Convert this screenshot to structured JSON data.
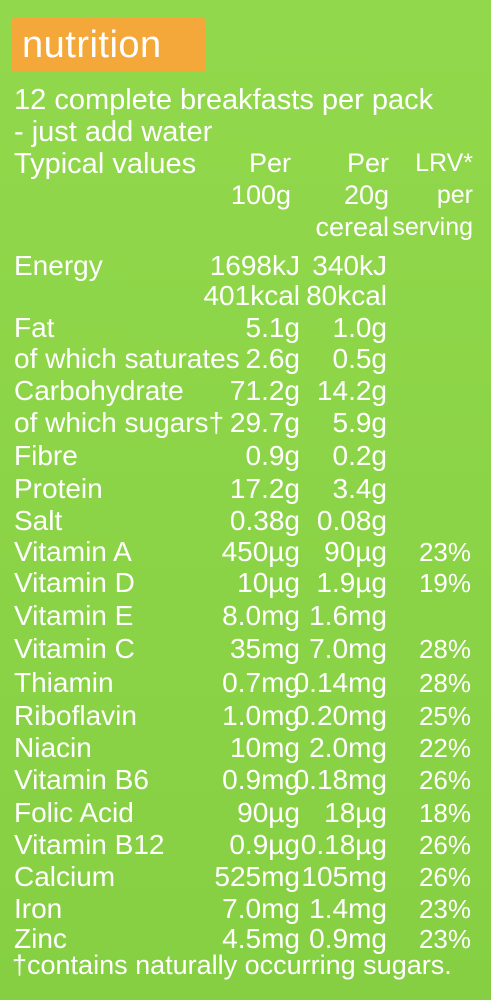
{
  "badge": "nutrition",
  "intro": [
    "12 complete breakfasts per pack",
    "- just add water"
  ],
  "header": {
    "label": "Typical values",
    "col1": [
      "Per",
      "100g"
    ],
    "col2": [
      "Per",
      "20g",
      "cereal"
    ],
    "col3": [
      "LRV*",
      "per",
      "serving"
    ]
  },
  "rows": [
    {
      "label": "Energy",
      "v1": "1698kJ",
      "v2": "340kJ",
      "v3": ""
    },
    {
      "label": "",
      "v1": "401kcal",
      "v2": "80kcal",
      "v3": ""
    },
    {
      "label": "Fat",
      "v1": "5.1g",
      "v2": "1.0g",
      "v3": ""
    },
    {
      "label": "of which saturates",
      "v1": "2.6g",
      "v2": "0.5g",
      "v3": ""
    },
    {
      "label": "Carbohydrate",
      "v1": "71.2g",
      "v2": "14.2g",
      "v3": ""
    },
    {
      "label": "of which sugars†",
      "v1": "29.7g",
      "v2": "5.9g",
      "v3": ""
    },
    {
      "label": "Fibre",
      "v1": "0.9g",
      "v2": "0.2g",
      "v3": ""
    },
    {
      "label": "Protein",
      "v1": "17.2g",
      "v2": "3.4g",
      "v3": ""
    },
    {
      "label": "Salt",
      "v1": "0.38g",
      "v2": "0.08g",
      "v3": ""
    },
    {
      "label": "Vitamin A",
      "v1": "450µg",
      "v2": "90µg",
      "v3": "23%"
    },
    {
      "label": "Vitamin D",
      "v1": "10µg",
      "v2": "1.9µg",
      "v3": "19%"
    },
    {
      "label": "Vitamin E",
      "v1": "8.0mg",
      "v2": "1.6mg",
      "v3": ""
    },
    {
      "label": "Vitamin C",
      "v1": "35mg",
      "v2": "7.0mg",
      "v3": "28%"
    },
    {
      "label": "Thiamin",
      "v1": "0.7mg",
      "v2": "0.14mg",
      "v3": "28%"
    },
    {
      "label": "Riboflavin",
      "v1": "1.0mg",
      "v2": "0.20mg",
      "v3": "25%"
    },
    {
      "label": "Niacin",
      "v1": "10mg",
      "v2": "2.0mg",
      "v3": "22%"
    },
    {
      "label": "Vitamin B6",
      "v1": "0.9mg",
      "v2": "0.18mg",
      "v3": "26%"
    },
    {
      "label": "Folic Acid",
      "v1": "90µg",
      "v2": "18µg",
      "v3": "18%"
    },
    {
      "label": "Vitamin B12",
      "v1": "0.9µg",
      "v2": "0.18µg",
      "v3": "26%"
    },
    {
      "label": "Calcium",
      "v1": "525mg",
      "v2": "105mg",
      "v3": "26%"
    },
    {
      "label": "Iron",
      "v1": "7.0mg",
      "v2": "1.4mg",
      "v3": "23%"
    },
    {
      "label": "Zinc",
      "v1": "4.5mg",
      "v2": "0.9mg",
      "v3": "23%"
    }
  ],
  "footnote": "†contains naturally occurring sugars."
}
